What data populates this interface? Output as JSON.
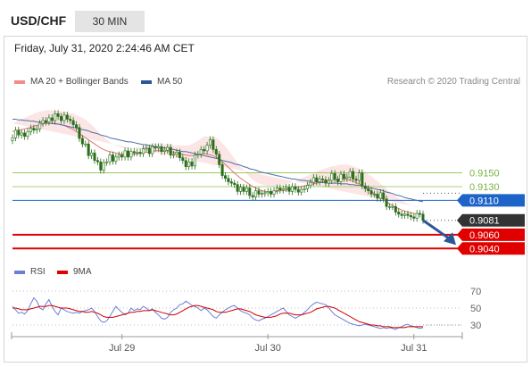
{
  "header": {
    "symbol": "USD/CHF",
    "timeframe": "30 MIN"
  },
  "timestamp": "Friday, July 31, 2020 2:24:46 AM CET",
  "legend": {
    "ma20_label": "MA 20 + Bollinger Bands",
    "ma50_label": "MA 50",
    "rsi_label": "RSI",
    "rsi_ma_label": "9MA",
    "credit": "Research © 2020 Trading Central"
  },
  "colors": {
    "candle": "#2a6e1b",
    "ma20": "#e57373",
    "band": "#f9cfcf",
    "ma50": "#4a6fa5",
    "support": "#e00000",
    "resistance": "#8bc34a",
    "pivot": "#1e64c8",
    "rsi": "#6a7fd6",
    "rsi_ma": "#cc0000",
    "arrow": "#2b5797"
  },
  "chart_data": [
    {
      "type": "candlestick",
      "title": "USD/CHF",
      "ylim": [
        0.903,
        0.9265
      ],
      "x_ticks": [
        {
          "label": "Jul 29",
          "bar": 36
        },
        {
          "label": "Jul 30",
          "bar": 84
        },
        {
          "label": "Jul 31",
          "bar": 132
        }
      ],
      "close_series": [
        0.9201,
        0.9212,
        0.9205,
        0.9208,
        0.9203,
        0.921,
        0.9215,
        0.9212,
        0.9214,
        0.9222,
        0.9226,
        0.9224,
        0.923,
        0.9226,
        0.9236,
        0.9232,
        0.9226,
        0.9234,
        0.9228,
        0.9226,
        0.922,
        0.9216,
        0.92,
        0.9192,
        0.9192,
        0.9175,
        0.9179,
        0.9168,
        0.9166,
        0.9154,
        0.9165,
        0.9166,
        0.9176,
        0.9167,
        0.9173,
        0.9176,
        0.9173,
        0.9182,
        0.9173,
        0.9181,
        0.9179,
        0.918,
        0.9178,
        0.9185,
        0.9186,
        0.9178,
        0.9188,
        0.9186,
        0.9188,
        0.9181,
        0.9183,
        0.9187,
        0.9176,
        0.9177,
        0.918,
        0.9172,
        0.9168,
        0.9159,
        0.9166,
        0.916,
        0.9176,
        0.9177,
        0.9184,
        0.9182,
        0.919,
        0.9198,
        0.9184,
        0.9177,
        0.9162,
        0.9146,
        0.9142,
        0.9137,
        0.9135,
        0.9133,
        0.9123,
        0.9129,
        0.9123,
        0.9128,
        0.9117,
        0.9115,
        0.9124,
        0.9119,
        0.912,
        0.9121,
        0.9123,
        0.9119,
        0.9124,
        0.9128,
        0.9125,
        0.9127,
        0.9129,
        0.9123,
        0.913,
        0.9126,
        0.9122,
        0.9126,
        0.9127,
        0.9132,
        0.9136,
        0.9143,
        0.9137,
        0.9141,
        0.914,
        0.9135,
        0.9139,
        0.9149,
        0.9141,
        0.9137,
        0.9148,
        0.9142,
        0.9144,
        0.9152,
        0.9141,
        0.9139,
        0.915,
        0.9131,
        0.9127,
        0.9124,
        0.9119,
        0.9119,
        0.9113,
        0.9121,
        0.9112,
        0.9101,
        0.9101,
        0.9101,
        0.9093,
        0.909,
        0.9088,
        0.909,
        0.9088,
        0.9086,
        0.9084,
        0.9091,
        0.909,
        0.9081
      ],
      "ma20_series": [
        0.921,
        0.9211,
        0.9212,
        0.9213,
        0.9214,
        0.9215,
        0.9216,
        0.9218,
        0.9219,
        0.922,
        0.9221,
        0.9222,
        0.9222,
        0.9222,
        0.9222,
        0.9221,
        0.922,
        0.9219,
        0.9217,
        0.9215,
        0.9213,
        0.921,
        0.9207,
        0.9204,
        0.9201,
        0.9198,
        0.9195,
        0.9192,
        0.9189,
        0.9186,
        0.9184,
        0.9182,
        0.9181,
        0.918,
        0.9179,
        0.9178,
        0.9177,
        0.9177,
        0.9177,
        0.9177,
        0.9177,
        0.9178,
        0.9178,
        0.9179,
        0.918,
        0.918,
        0.9181,
        0.9182,
        0.9182,
        0.9182,
        0.9182,
        0.9182,
        0.9181,
        0.918,
        0.9179,
        0.9178,
        0.9177,
        0.9176,
        0.9175,
        0.9175,
        0.9175,
        0.9176,
        0.9177,
        0.9178,
        0.9177,
        0.9176,
        0.9175,
        0.9173,
        0.917,
        0.9166,
        0.9162,
        0.9158,
        0.9154,
        0.915,
        0.9146,
        0.9142,
        0.9139,
        0.9136,
        0.9133,
        0.913,
        0.9128,
        0.9126,
        0.9124,
        0.9123,
        0.9122,
        0.9122,
        0.9122,
        0.9123,
        0.9124,
        0.9124,
        0.9125,
        0.9126,
        0.9127,
        0.9128,
        0.9129,
        0.913,
        0.9131,
        0.9132,
        0.9133,
        0.9134,
        0.9135,
        0.9136,
        0.9137,
        0.9138,
        0.9139,
        0.914,
        0.914,
        0.9141,
        0.9141,
        0.9141,
        0.914,
        0.9139,
        0.9138,
        0.9136,
        0.9134,
        0.9132,
        0.9129,
        0.9126,
        0.9123,
        0.912,
        0.9117,
        0.9114,
        0.9111,
        0.9108,
        0.9105,
        0.9102,
        0.91,
        0.9098,
        0.9096,
        0.9094,
        0.9093,
        0.9092,
        0.9091,
        0.909,
        0.909
      ],
      "band_width_series": [
        0.0012,
        0.0013,
        0.0014,
        0.0015,
        0.0016,
        0.0017,
        0.0018,
        0.0018,
        0.0019,
        0.0019,
        0.0019,
        0.0019,
        0.0019,
        0.0019,
        0.0019,
        0.0019,
        0.002,
        0.002,
        0.0021,
        0.0022,
        0.0023,
        0.0024,
        0.0025,
        0.0026,
        0.0026,
        0.0026,
        0.0025,
        0.0024,
        0.0022,
        0.002,
        0.0018,
        0.0016,
        0.0014,
        0.0012,
        0.0011,
        0.001,
        0.0009,
        0.0009,
        0.0009,
        0.0009,
        0.0009,
        0.0009,
        0.0009,
        0.0009,
        0.001,
        0.001,
        0.001,
        0.001,
        0.001,
        0.001,
        0.001,
        0.001,
        0.001,
        0.001,
        0.0011,
        0.0012,
        0.0013,
        0.0014,
        0.0015,
        0.0017,
        0.0019,
        0.0021,
        0.0023,
        0.0025,
        0.0026,
        0.0027,
        0.0028,
        0.0028,
        0.0028,
        0.0027,
        0.0026,
        0.0025,
        0.0023,
        0.0021,
        0.0019,
        0.0017,
        0.0015,
        0.0013,
        0.0011,
        0.001,
        0.0009,
        0.0009,
        0.0009,
        0.0009,
        0.0009,
        0.0009,
        0.0009,
        0.0009,
        0.0009,
        0.0009,
        0.0009,
        0.0009,
        0.001,
        0.001,
        0.0011,
        0.0012,
        0.0013,
        0.0014,
        0.0015,
        0.0016,
        0.0017,
        0.0018,
        0.0018,
        0.0019,
        0.0019,
        0.002,
        0.002,
        0.002,
        0.0021,
        0.0021,
        0.0022,
        0.0022,
        0.0022,
        0.0022,
        0.0022,
        0.0022,
        0.0022,
        0.0022,
        0.0022,
        0.0021,
        0.0021,
        0.002,
        0.002,
        0.0019,
        0.0018,
        0.0017,
        0.0016,
        0.0015,
        0.0014,
        0.0013,
        0.0012,
        0.0011,
        0.001,
        0.001,
        0.001,
        0.001
      ],
      "ma50_series": [
        0.9228,
        0.9228,
        0.9227,
        0.9227,
        0.9226,
        0.9226,
        0.9225,
        0.9225,
        0.9224,
        0.9224,
        0.9223,
        0.9223,
        0.9222,
        0.9222,
        0.9221,
        0.9221,
        0.922,
        0.9219,
        0.9218,
        0.9217,
        0.9216,
        0.9215,
        0.9214,
        0.9213,
        0.9212,
        0.9211,
        0.9209,
        0.9208,
        0.9207,
        0.9205,
        0.9204,
        0.9203,
        0.9201,
        0.92,
        0.9199,
        0.9198,
        0.9197,
        0.9196,
        0.9195,
        0.9195,
        0.9194,
        0.9193,
        0.9192,
        0.9191,
        0.9191,
        0.919,
        0.9189,
        0.9188,
        0.9188,
        0.9187,
        0.9186,
        0.9186,
        0.9185,
        0.9184,
        0.9183,
        0.9182,
        0.9181,
        0.9181,
        0.918,
        0.9179,
        0.9178,
        0.9177,
        0.9176,
        0.9175,
        0.9174,
        0.9173,
        0.9172,
        0.9171,
        0.917,
        0.9168,
        0.9167,
        0.9166,
        0.9165,
        0.9163,
        0.9162,
        0.9161,
        0.9159,
        0.9158,
        0.9156,
        0.9155,
        0.9154,
        0.9152,
        0.9151,
        0.915,
        0.9149,
        0.9148,
        0.9147,
        0.9146,
        0.9145,
        0.9144,
        0.9143,
        0.9142,
        0.9141,
        0.9141,
        0.914,
        0.9139,
        0.9139,
        0.9138,
        0.9138,
        0.9137,
        0.9137,
        0.9136,
        0.9136,
        0.9136,
        0.9135,
        0.9135,
        0.9135,
        0.9135,
        0.9134,
        0.9134,
        0.9134,
        0.9133,
        0.9133,
        0.9132,
        0.9132,
        0.9131,
        0.913,
        0.9129,
        0.9128,
        0.9127,
        0.9126,
        0.9125,
        0.9124,
        0.9122,
        0.9121,
        0.912,
        0.9118,
        0.9117,
        0.9116,
        0.9114,
        0.9113,
        0.9112,
        0.9111,
        0.911,
        0.9109,
        0.9108
      ],
      "levels": [
        {
          "value": 0.915,
          "label": "0.9150",
          "kind": "resistance"
        },
        {
          "value": 0.913,
          "label": "0.9130",
          "kind": "resistance"
        },
        {
          "value": 0.911,
          "label": "0.9110",
          "kind": "pivot"
        },
        {
          "value": 0.9081,
          "label": "0.9081",
          "kind": "last"
        },
        {
          "value": 0.906,
          "label": "0.9060",
          "kind": "support"
        },
        {
          "value": 0.904,
          "label": "0.9040",
          "kind": "support"
        }
      ],
      "forecast_arrow": {
        "from_value": 0.9081,
        "to_value": 0.904,
        "direction": "down"
      }
    },
    {
      "type": "line",
      "title": "RSI",
      "ylim": [
        20,
        80
      ],
      "y_ticks": [
        70,
        50,
        30
      ],
      "series": [
        {
          "name": "RSI",
          "values": [
            52,
            48,
            44,
            45,
            43,
            47,
            55,
            62,
            58,
            50,
            48,
            55,
            60,
            52,
            46,
            42,
            50,
            48,
            46,
            45,
            44,
            45,
            44,
            46,
            47,
            48,
            50,
            46,
            40,
            35,
            33,
            35,
            40,
            46,
            52,
            48,
            45,
            42,
            44,
            50,
            47,
            49,
            48,
            52,
            50,
            47,
            49,
            45,
            42,
            38,
            37,
            39,
            45,
            48,
            50,
            54,
            55,
            58,
            56,
            53,
            52,
            50,
            47,
            50,
            48,
            44,
            40,
            38,
            42,
            45,
            48,
            50,
            52,
            53,
            50,
            47,
            45,
            44,
            42,
            38,
            36,
            35,
            37,
            38,
            40,
            42,
            44,
            46,
            48,
            50,
            46,
            42,
            40,
            38,
            40,
            42,
            45,
            48,
            52,
            55,
            57,
            56,
            55,
            54,
            50,
            46,
            42,
            40,
            38,
            36,
            34,
            32,
            31,
            30,
            29,
            30,
            31,
            30,
            29,
            28,
            27,
            26,
            27,
            26,
            27,
            26,
            25,
            27,
            28,
            30,
            31,
            29,
            28,
            27,
            26,
            27
          ]
        },
        {
          "name": "9MA",
          "values": [
            50,
            50,
            49,
            48,
            48,
            48,
            49,
            50,
            51,
            52,
            52,
            52,
            53,
            53,
            52,
            51,
            50,
            50,
            50,
            49,
            48,
            47,
            46,
            46,
            45,
            45,
            46,
            45,
            44,
            42,
            40,
            39,
            39,
            39,
            40,
            41,
            42,
            43,
            44,
            45,
            45,
            46,
            46,
            47,
            47,
            47,
            48,
            47,
            46,
            45,
            44,
            43,
            42,
            42,
            43,
            45,
            47,
            49,
            51,
            52,
            53,
            53,
            52,
            51,
            50,
            49,
            48,
            46,
            45,
            45,
            45,
            46,
            47,
            48,
            49,
            49,
            48,
            47,
            46,
            44,
            42,
            41,
            40,
            39,
            39,
            39,
            40,
            41,
            43,
            44,
            44,
            44,
            43,
            42,
            42,
            42,
            43,
            44,
            45,
            47,
            49,
            50,
            51,
            52,
            52,
            51,
            50,
            48,
            46,
            44,
            42,
            40,
            38,
            36,
            34,
            33,
            32,
            31,
            30,
            30,
            29,
            29,
            28,
            28,
            28,
            27,
            27,
            27,
            27,
            27,
            28,
            28,
            28,
            28,
            28,
            28
          ]
        }
      ]
    }
  ]
}
